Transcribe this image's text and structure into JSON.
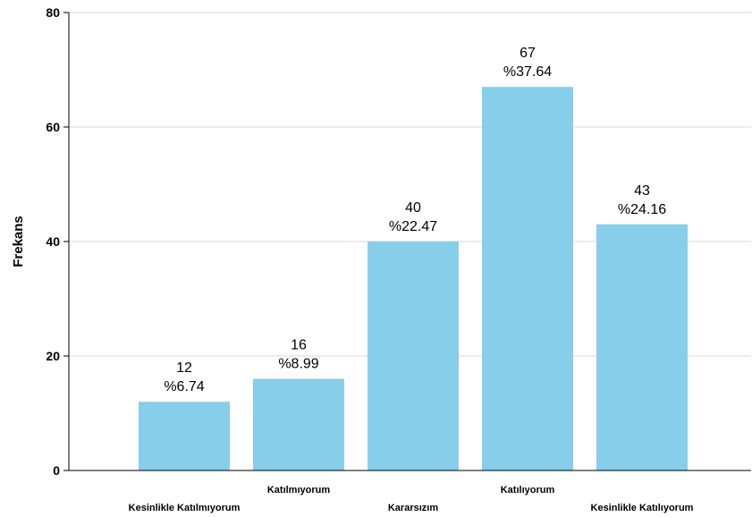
{
  "chart_data": {
    "type": "bar",
    "ylabel": "Frekans",
    "xlabel": "",
    "ylim": [
      0,
      80
    ],
    "yticks": [
      0,
      20,
      40,
      60,
      80
    ],
    "grid": true,
    "bar_color": "#87CEEB",
    "categories": [
      "Kesinlikle Katılmıyorum",
      "Katılmıyorum",
      "Kararsızım",
      "Katılıyorum",
      "Kesinlikle Katılıyorum"
    ],
    "values": [
      12,
      16,
      40,
      67,
      43
    ],
    "percent_labels": [
      "%6.74",
      "%8.99",
      "%22.47",
      "%37.64",
      "%24.16"
    ]
  }
}
